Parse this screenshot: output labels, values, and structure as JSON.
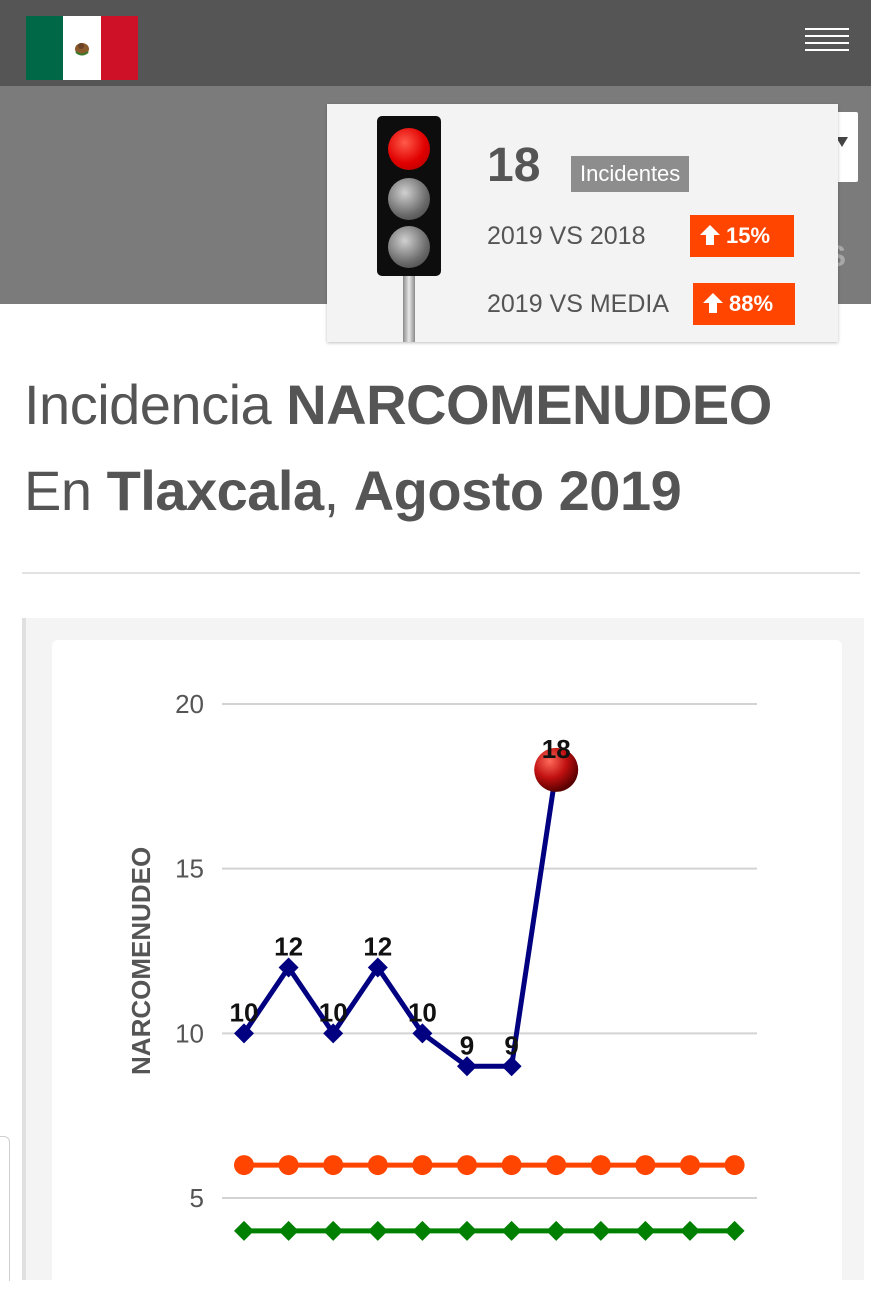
{
  "header": {
    "flag_icon": "mexico-flag-icon",
    "menu_icon": "hamburger-menu-icon"
  },
  "subbar": {
    "partial_text": "S"
  },
  "summary": {
    "traffic_light_state": "red",
    "count": "18",
    "count_label": "Incidentes",
    "comparisons": [
      {
        "label": "2019 VS 2018",
        "change": "15%",
        "direction": "up"
      },
      {
        "label": "2019 VS MEDIA",
        "change": "88%",
        "direction": "up"
      }
    ]
  },
  "title": {
    "line1_prefix": "Incidencia",
    "line1_bold": "NARCOMENUDEO",
    "line2_prefix": "En",
    "line2_bold": "Tlaxcala",
    "line2_sep": ",",
    "line2_bold2": "Agosto 2019"
  },
  "chart_data": {
    "type": "line",
    "ylabel": "NARCOMENUDEO",
    "xlabel": "",
    "yticks": [
      "5",
      "10",
      "15",
      "20"
    ],
    "ylim": [
      4,
      21
    ],
    "x_count": 12,
    "grid": true,
    "highlight_color": "#c01010",
    "series": [
      {
        "values": [
          10,
          12,
          10,
          12,
          10,
          9,
          9,
          18
        ],
        "color": "#000080",
        "marker": "diamond",
        "labels": true
      },
      {
        "values": [
          6,
          6,
          6,
          6,
          6,
          6,
          6,
          6,
          6,
          6,
          6,
          6
        ],
        "color": "#ff4500",
        "marker": "circle",
        "labels": false
      },
      {
        "values": [
          4,
          4,
          4,
          4,
          4,
          4,
          4,
          4,
          4,
          4,
          4,
          4
        ],
        "color": "#008000",
        "marker": "diamond",
        "labels": false
      }
    ]
  }
}
